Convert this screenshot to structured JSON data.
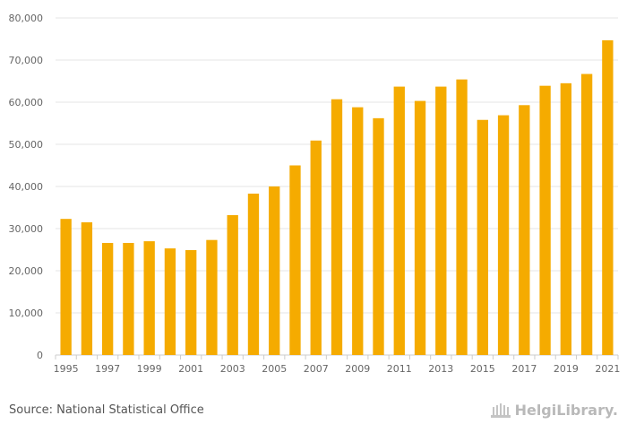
{
  "chart_data": {
    "type": "bar",
    "title": "",
    "xlabel": "",
    "ylabel": "",
    "ylim": [
      0,
      80000
    ],
    "yticks": [
      0,
      10000,
      20000,
      30000,
      40000,
      50000,
      60000,
      70000,
      80000
    ],
    "ytick_labels": [
      "0",
      "10,000",
      "20,000",
      "30,000",
      "40,000",
      "50,000",
      "60,000",
      "70,000",
      "80,000"
    ],
    "categories": [
      "1995",
      "1996",
      "1997",
      "1998",
      "1999",
      "2000",
      "2001",
      "2002",
      "2003",
      "2004",
      "2005",
      "2006",
      "2007",
      "2008",
      "2009",
      "2010",
      "2011",
      "2012",
      "2013",
      "2014",
      "2015",
      "2016",
      "2017",
      "2018",
      "2019",
      "2020",
      "2021"
    ],
    "x_tick_labels": [
      "1995",
      "",
      "1997",
      "",
      "1999",
      "",
      "2001",
      "",
      "2003",
      "",
      "2005",
      "",
      "2007",
      "",
      "2009",
      "",
      "2011",
      "",
      "2013",
      "",
      "2015",
      "",
      "2017",
      "",
      "2019",
      "",
      "2021"
    ],
    "values": [
      32300,
      31500,
      26600,
      26600,
      27000,
      25300,
      24900,
      27300,
      33200,
      38300,
      40000,
      45000,
      50900,
      60700,
      58800,
      56200,
      63700,
      60300,
      63700,
      65400,
      55800,
      56900,
      59300,
      63900,
      64500,
      66700,
      74700
    ],
    "bar_color": "#f5ab00",
    "grid": true
  },
  "footer": {
    "source": "Source: National Statistical Office",
    "brand": "HelgiLibrary."
  },
  "colors": {
    "grid": "#e6e6e6",
    "axis_text": "#666666",
    "brand": "#b9b9b9"
  }
}
